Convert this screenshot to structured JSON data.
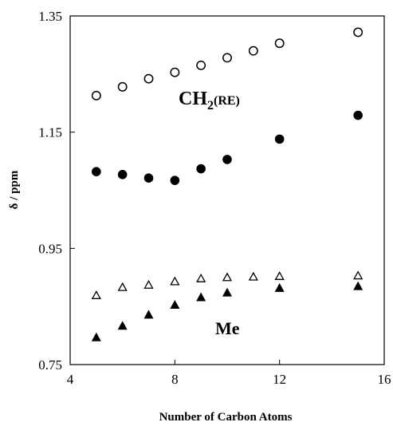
{
  "chart_data": {
    "type": "scatter",
    "xlabel": "Number of Carbon Atoms",
    "ylabel": "δ / ppm",
    "xlim": [
      4,
      16
    ],
    "ylim": [
      0.75,
      1.35
    ],
    "x_ticks": [
      "4",
      "8",
      "12",
      "16"
    ],
    "y_ticks": [
      "0.75",
      "0.95",
      "1.15",
      "1.35"
    ],
    "grid": false,
    "annotations": {
      "ch2_main": "CH",
      "ch2_sub": "2",
      "ch2_suffix": "(RE)",
      "me": "Me"
    },
    "series": [
      {
        "marker": "open-circle",
        "x": [
          5,
          6,
          7,
          8,
          9,
          10,
          11,
          12,
          15
        ],
        "y": [
          1.213,
          1.228,
          1.242,
          1.253,
          1.265,
          1.278,
          1.29,
          1.303,
          1.322
        ]
      },
      {
        "marker": "filled-circle",
        "x": [
          5,
          6,
          7,
          8,
          9,
          10,
          12,
          15
        ],
        "y": [
          1.082,
          1.077,
          1.071,
          1.067,
          1.087,
          1.103,
          1.138,
          1.179
        ]
      },
      {
        "marker": "open-triangle",
        "x": [
          5,
          6,
          7,
          8,
          9,
          10,
          11,
          12,
          15
        ],
        "y": [
          0.869,
          0.883,
          0.887,
          0.893,
          0.898,
          0.9,
          0.901,
          0.902,
          0.903
        ]
      },
      {
        "marker": "filled-triangle",
        "x": [
          5,
          6,
          7,
          8,
          9,
          10,
          12,
          15
        ],
        "y": [
          0.797,
          0.817,
          0.836,
          0.853,
          0.866,
          0.874,
          0.882,
          0.885
        ]
      }
    ]
  }
}
